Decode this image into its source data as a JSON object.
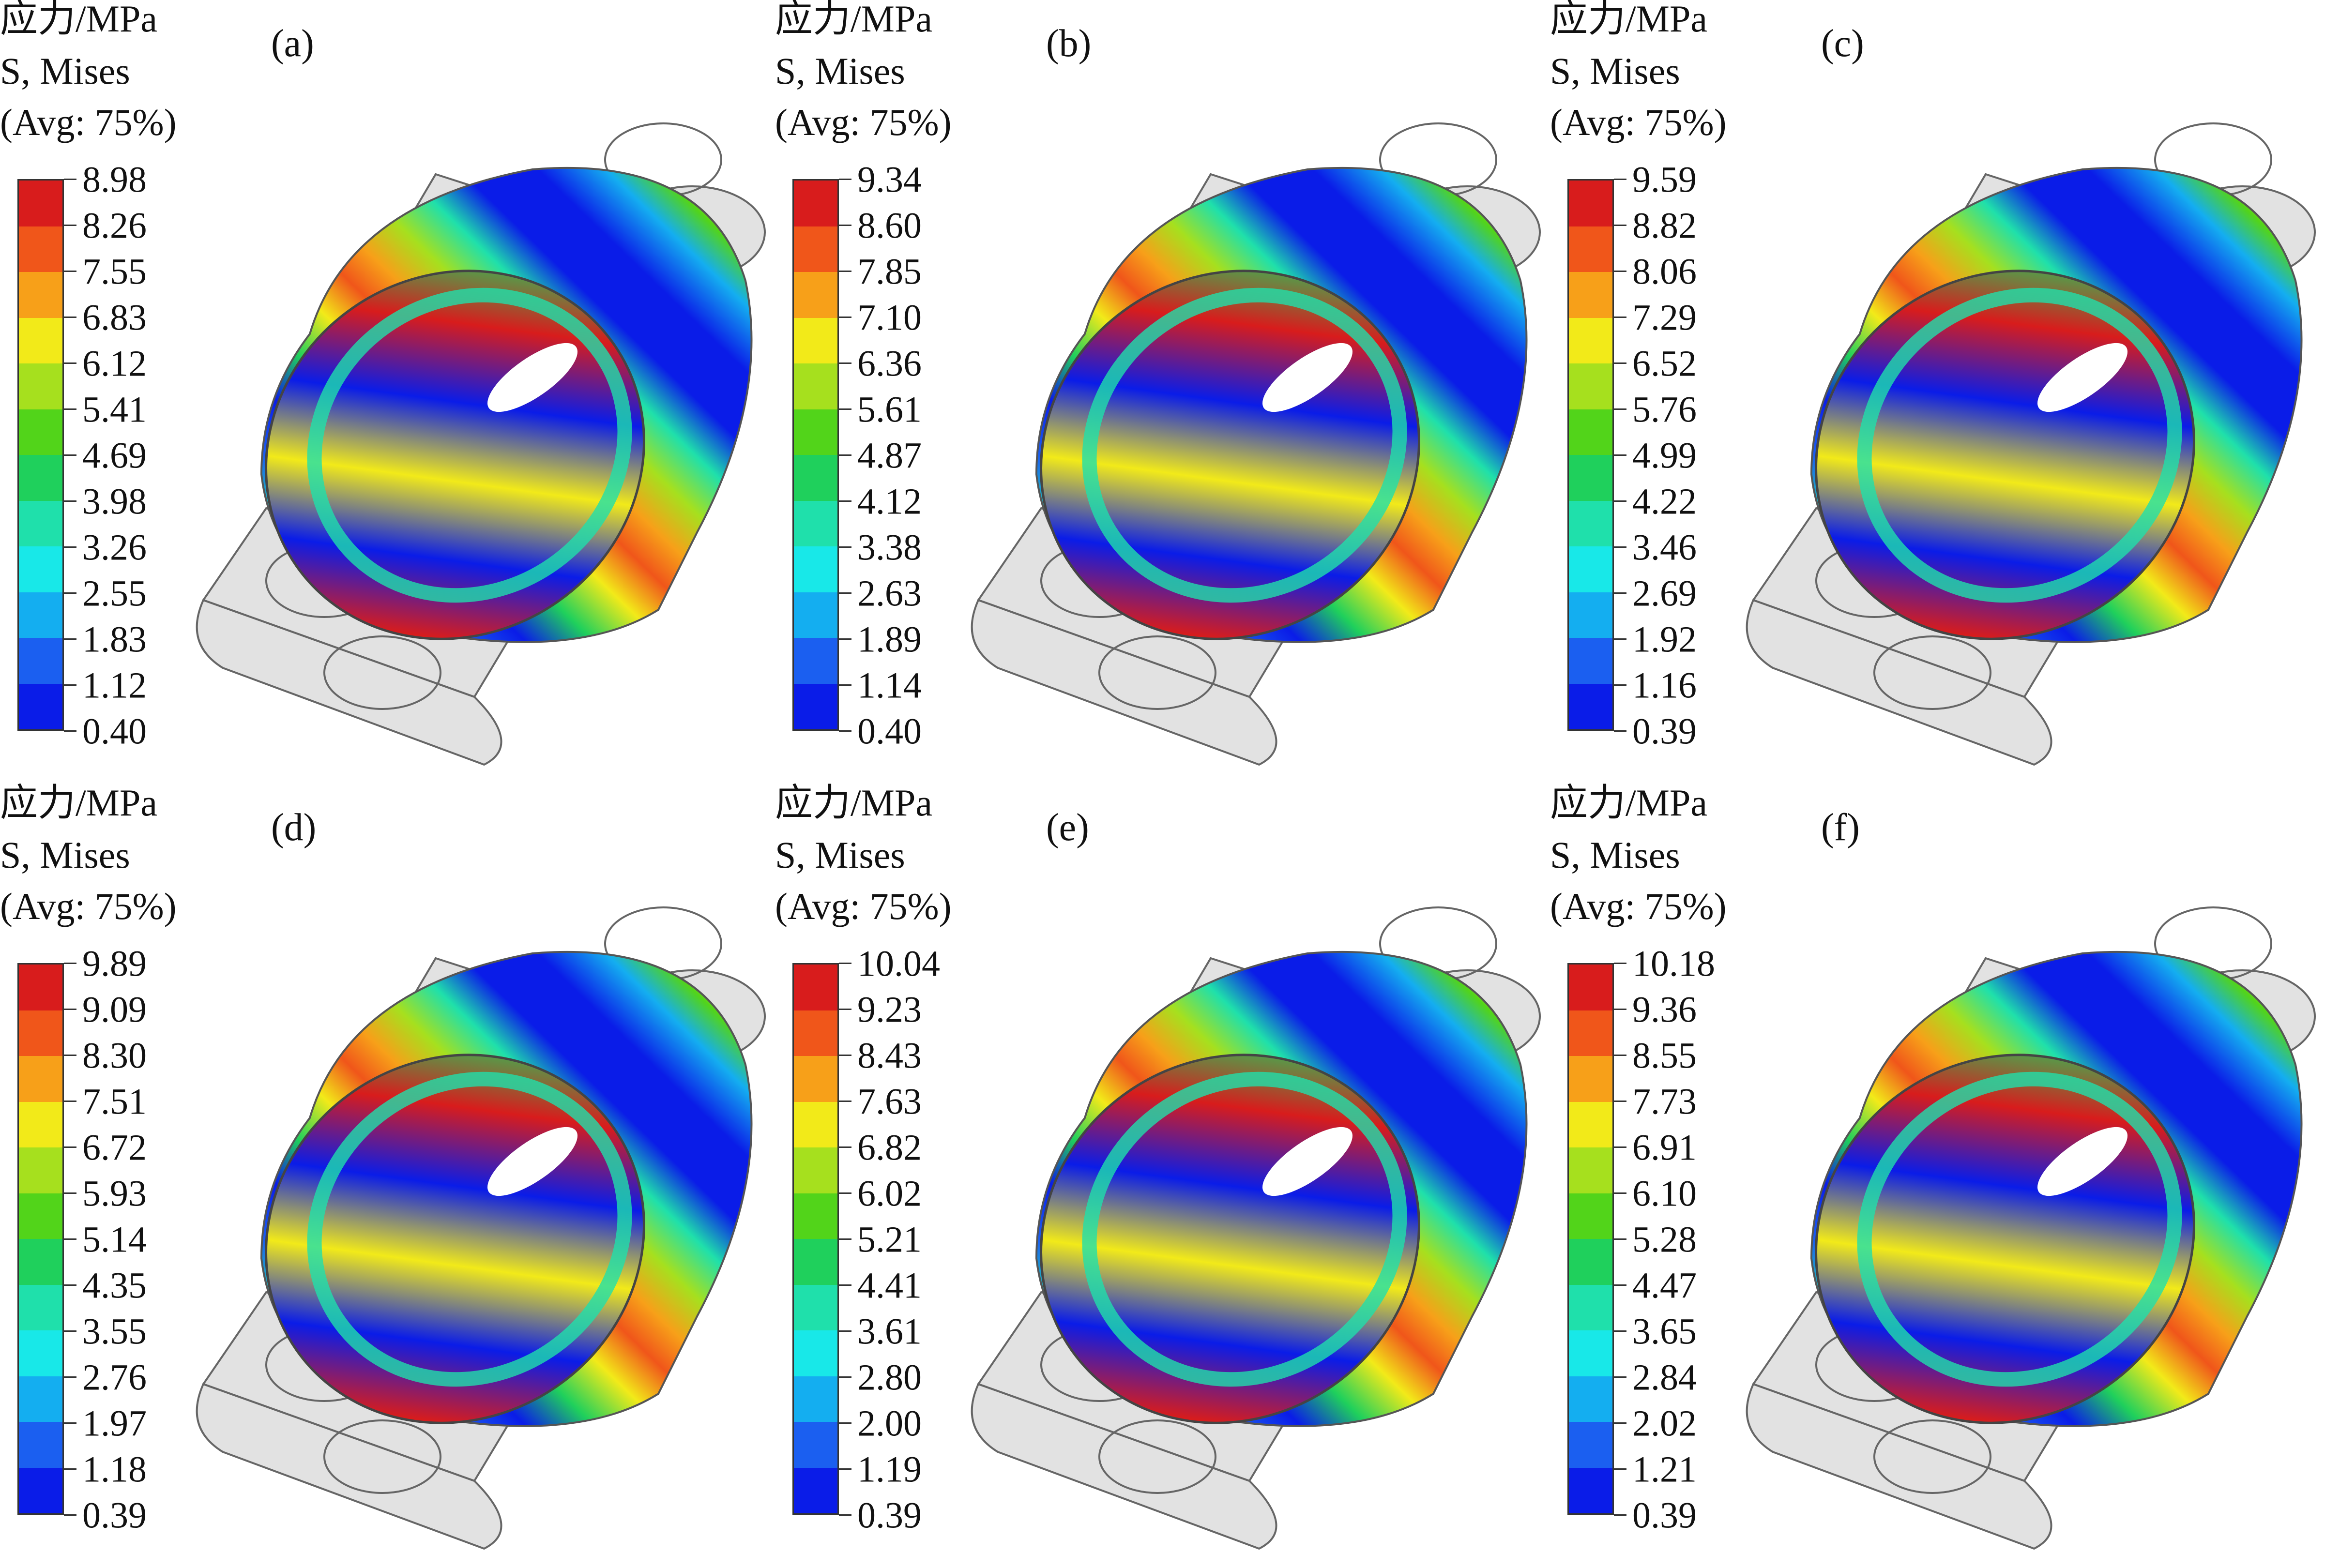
{
  "legend_colors": [
    "#d81c1c",
    "#f0561a",
    "#f7a019",
    "#f2ea19",
    "#a6e01e",
    "#52d41a",
    "#1fd05c",
    "#1fe0ab",
    "#18e8e8",
    "#14aef0",
    "#1b5ff0",
    "#0a1ce8"
  ],
  "panels": [
    {
      "label": "(a)",
      "title": "应力/MPa",
      "var": "S, Mises",
      "avg": "(Avg: 75%)",
      "ticks": [
        "8.98",
        "8.26",
        "7.55",
        "6.83",
        "6.12",
        "5.41",
        "4.69",
        "3.98",
        "3.26",
        "2.55",
        "1.83",
        "1.12",
        "0.40"
      ]
    },
    {
      "label": "(b)",
      "title": "应力/MPa",
      "var": "S, Mises",
      "avg": "(Avg: 75%)",
      "ticks": [
        "9.34",
        "8.60",
        "7.85",
        "7.10",
        "6.36",
        "5.61",
        "4.87",
        "4.12",
        "3.38",
        "2.63",
        "1.89",
        "1.14",
        "0.40"
      ]
    },
    {
      "label": "(c)",
      "title": "应力/MPa",
      "var": "S, Mises",
      "avg": "(Avg: 75%)",
      "ticks": [
        "9.59",
        "8.82",
        "8.06",
        "7.29",
        "6.52",
        "5.76",
        "4.99",
        "4.22",
        "3.46",
        "2.69",
        "1.92",
        "1.16",
        "0.39"
      ]
    },
    {
      "label": "(d)",
      "title": "应力/MPa",
      "var": "S, Mises",
      "avg": "(Avg: 75%)",
      "ticks": [
        "9.89",
        "9.09",
        "8.30",
        "7.51",
        "6.72",
        "5.93",
        "5.14",
        "4.35",
        "3.55",
        "2.76",
        "1.97",
        "1.18",
        "0.39"
      ]
    },
    {
      "label": "(e)",
      "title": "应力/MPa",
      "var": "S, Mises",
      "avg": "(Avg: 75%)",
      "ticks": [
        "10.04",
        "9.23",
        "8.43",
        "7.63",
        "6.82",
        "6.02",
        "5.21",
        "4.41",
        "3.61",
        "2.80",
        "2.00",
        "1.19",
        "0.39"
      ]
    },
    {
      "label": "(f)",
      "title": "应力/MPa",
      "var": "S, Mises",
      "avg": "(Avg: 75%)",
      "ticks": [
        "10.18",
        "9.36",
        "8.55",
        "7.73",
        "6.91",
        "6.10",
        "5.28",
        "4.47",
        "3.65",
        "2.84",
        "2.02",
        "1.21",
        "0.39"
      ]
    }
  ]
}
